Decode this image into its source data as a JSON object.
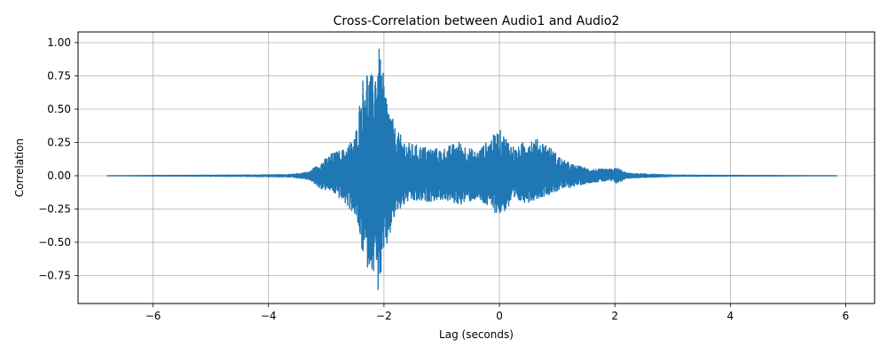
{
  "chart_data": {
    "type": "line",
    "title": "Cross-Correlation between Audio1 and Audio2",
    "xlabel": "Lag (seconds)",
    "ylabel": "Correlation",
    "xlim": [
      -7.3,
      6.5
    ],
    "ylim": [
      -0.96,
      1.08
    ],
    "xticks": [
      -6,
      -4,
      -2,
      0,
      2,
      4,
      6
    ],
    "xtick_labels": [
      "−6",
      "−4",
      "−2",
      "0",
      "2",
      "4",
      "6"
    ],
    "yticks": [
      -0.75,
      -0.5,
      -0.25,
      0.0,
      0.25,
      0.5,
      0.75,
      1.0
    ],
    "ytick_labels": [
      "−0.75",
      "−0.50",
      "−0.25",
      "0.00",
      "0.25",
      "0.50",
      "0.75",
      "1.00"
    ],
    "grid": true,
    "line_color": "#1f77b4",
    "x_range": [
      -6.8,
      5.85
    ],
    "envelope": [
      {
        "x": -6.8,
        "upper": 0.0,
        "lower": 0.0
      },
      {
        "x": -5.5,
        "upper": 0.003,
        "lower": -0.003
      },
      {
        "x": -4.5,
        "upper": 0.005,
        "lower": -0.005
      },
      {
        "x": -3.6,
        "upper": 0.01,
        "lower": -0.01
      },
      {
        "x": -3.3,
        "upper": 0.03,
        "lower": -0.03
      },
      {
        "x": -3.1,
        "upper": 0.1,
        "lower": -0.1
      },
      {
        "x": -2.9,
        "upper": 0.17,
        "lower": -0.12
      },
      {
        "x": -2.7,
        "upper": 0.2,
        "lower": -0.2
      },
      {
        "x": -2.5,
        "upper": 0.3,
        "lower": -0.3
      },
      {
        "x": -2.33,
        "upper": 0.86,
        "lower": -0.69
      },
      {
        "x": -2.2,
        "upper": 0.75,
        "lower": -0.7
      },
      {
        "x": -2.1,
        "upper": 1.0,
        "lower": -0.88
      },
      {
        "x": -1.95,
        "upper": 0.6,
        "lower": -0.55
      },
      {
        "x": -1.8,
        "upper": 0.35,
        "lower": -0.3
      },
      {
        "x": -1.6,
        "upper": 0.25,
        "lower": -0.2
      },
      {
        "x": -1.3,
        "upper": 0.22,
        "lower": -0.2
      },
      {
        "x": -1.0,
        "upper": 0.2,
        "lower": -0.18
      },
      {
        "x": -0.7,
        "upper": 0.26,
        "lower": -0.22
      },
      {
        "x": -0.4,
        "upper": 0.18,
        "lower": -0.18
      },
      {
        "x": 0.0,
        "upper": 0.35,
        "lower": -0.3
      },
      {
        "x": 0.3,
        "upper": 0.2,
        "lower": -0.2
      },
      {
        "x": 0.5,
        "upper": 0.3,
        "lower": -0.2
      },
      {
        "x": 0.8,
        "upper": 0.25,
        "lower": -0.15
      },
      {
        "x": 1.1,
        "upper": 0.12,
        "lower": -0.1
      },
      {
        "x": 1.3,
        "upper": 0.08,
        "lower": -0.08
      },
      {
        "x": 1.6,
        "upper": 0.05,
        "lower": -0.05
      },
      {
        "x": 1.9,
        "upper": 0.05,
        "lower": -0.04
      },
      {
        "x": 2.05,
        "upper": 0.06,
        "lower": -0.06
      },
      {
        "x": 2.2,
        "upper": 0.02,
        "lower": -0.02
      },
      {
        "x": 3.0,
        "upper": 0.005,
        "lower": -0.005
      },
      {
        "x": 4.0,
        "upper": 0.003,
        "lower": -0.003
      },
      {
        "x": 5.85,
        "upper": 0.0,
        "lower": 0.0
      }
    ]
  }
}
